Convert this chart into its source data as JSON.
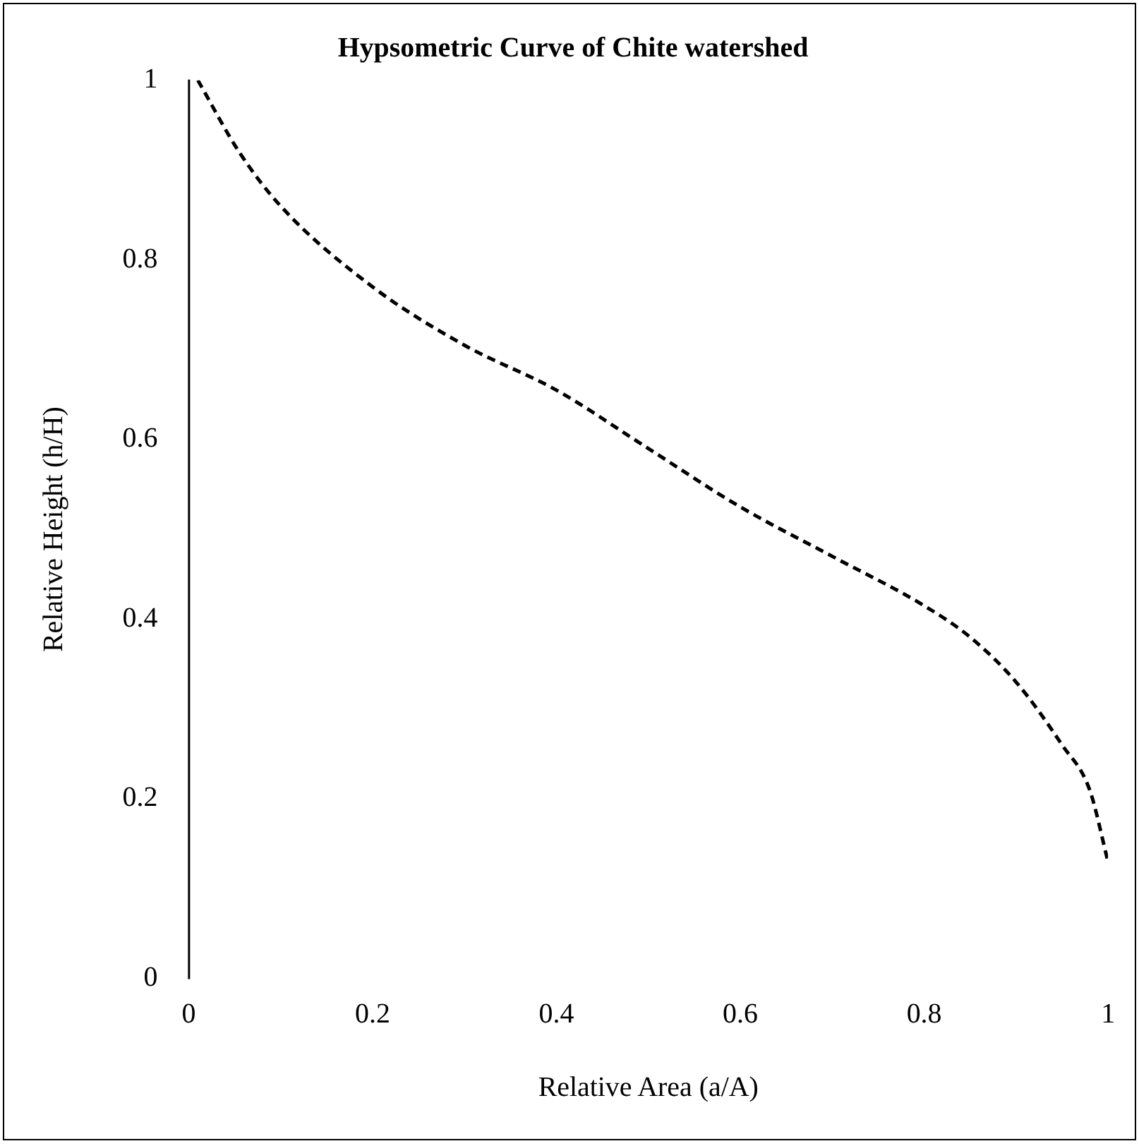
{
  "chart_data": {
    "type": "line",
    "title": "Hypsometric Curve of Chite watershed",
    "xlabel": "Relative Area (a/A)",
    "ylabel": "Relative Height (h/H)",
    "x": [
      0.01,
      0.055,
      0.1,
      0.2,
      0.3,
      0.4,
      0.5,
      0.6,
      0.7,
      0.8,
      0.85,
      0.9,
      0.95,
      0.98,
      1.0
    ],
    "series": [
      {
        "color": "#000000",
        "values": [
          1.0,
          0.92,
          0.86,
          0.77,
          0.705,
          0.655,
          0.59,
          0.525,
          0.47,
          0.415,
          0.38,
          0.33,
          0.26,
          0.21,
          0.13
        ]
      }
    ],
    "xlim": [
      0,
      1
    ],
    "ylim": [
      0,
      1
    ],
    "xticks": [
      0,
      0.2,
      0.4,
      0.6,
      0.8,
      1
    ],
    "yticks": [
      0,
      0.2,
      0.4,
      0.6,
      0.8,
      1
    ],
    "grid": false,
    "legend": false,
    "marker": "none",
    "line_style": "dashed"
  }
}
